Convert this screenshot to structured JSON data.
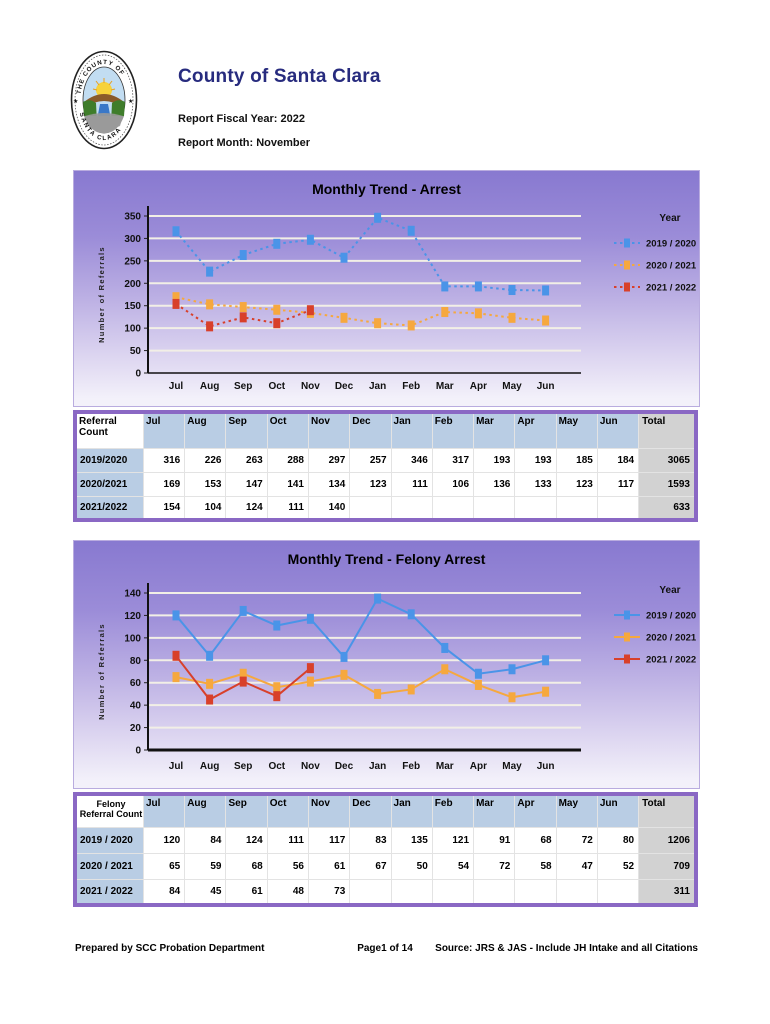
{
  "header": {
    "title": "County of Santa Clara",
    "fiscal_year": "Report Fiscal Year: 2022",
    "report_month": "Report Month: November",
    "seal_top_text": "THE COUNTY OF",
    "seal_bottom_text": "SANTA CLARA"
  },
  "chart_data": [
    {
      "type": "line",
      "title": "Monthly Trend - Arrest",
      "ylabel": "Number of Referrals",
      "legend_title": "Year",
      "categories": [
        "Jul",
        "Aug",
        "Sep",
        "Oct",
        "Nov",
        "Dec",
        "Jan",
        "Feb",
        "Mar",
        "Apr",
        "May",
        "Jun"
      ],
      "ylim": [
        0,
        350
      ],
      "ytick_step": 50,
      "grid": true,
      "legend_position": "right",
      "line_style": "dashed",
      "series": [
        {
          "name": "2019 / 2020",
          "color": "#4a94e8",
          "values": [
            316,
            226,
            263,
            288,
            297,
            257,
            346,
            317,
            193,
            193,
            185,
            184
          ]
        },
        {
          "name": "2020 / 2021",
          "color": "#f6a83e",
          "values": [
            169,
            153,
            147,
            141,
            134,
            123,
            111,
            106,
            136,
            133,
            123,
            117
          ]
        },
        {
          "name": "2021 / 2022",
          "color": "#d8402a",
          "values": [
            154,
            104,
            124,
            111,
            140
          ]
        }
      ]
    },
    {
      "type": "line",
      "title": "Monthly Trend - Felony Arrest",
      "ylabel": "Number of Referrals",
      "legend_title": "Year",
      "categories": [
        "Jul",
        "Aug",
        "Sep",
        "Oct",
        "Nov",
        "Dec",
        "Jan",
        "Feb",
        "Mar",
        "Apr",
        "May",
        "Jun"
      ],
      "ylim": [
        0,
        140
      ],
      "ytick_step": 20,
      "grid": true,
      "legend_position": "right",
      "line_style": "solid",
      "series": [
        {
          "name": "2019 / 2020",
          "color": "#4a94e8",
          "values": [
            120,
            84,
            124,
            111,
            117,
            83,
            135,
            121,
            91,
            68,
            72,
            80
          ]
        },
        {
          "name": "2020 / 2021",
          "color": "#f6a83e",
          "values": [
            65,
            59,
            68,
            56,
            61,
            67,
            50,
            54,
            72,
            58,
            47,
            52
          ]
        },
        {
          "name": "2021 / 2022",
          "color": "#d8402a",
          "values": [
            84,
            45,
            61,
            48,
            73
          ]
        }
      ]
    }
  ],
  "tables": [
    {
      "corner_label": "Referral Count",
      "columns": [
        "Jul",
        "Aug",
        "Sep",
        "Oct",
        "Nov",
        "Dec",
        "Jan",
        "Feb",
        "Mar",
        "Apr",
        "May",
        "Jun",
        "Total"
      ],
      "rows": [
        {
          "label": "2019/2020",
          "values": [
            316,
            226,
            263,
            288,
            297,
            257,
            346,
            317,
            193,
            193,
            185,
            184
          ],
          "total": 3065
        },
        {
          "label": "2020/2021",
          "values": [
            169,
            153,
            147,
            141,
            134,
            123,
            111,
            106,
            136,
            133,
            123,
            117
          ],
          "total": 1593
        },
        {
          "label": "2021/2022",
          "values": [
            154,
            104,
            124,
            111,
            140
          ],
          "total": 633
        }
      ]
    },
    {
      "corner_label": "Felony Referral Count",
      "columns": [
        "Jul",
        "Aug",
        "Sep",
        "Oct",
        "Nov",
        "Dec",
        "Jan",
        "Feb",
        "Mar",
        "Apr",
        "May",
        "Jun",
        "Total"
      ],
      "rows": [
        {
          "label": "2019 / 2020",
          "values": [
            120,
            84,
            124,
            111,
            117,
            83,
            135,
            121,
            91,
            68,
            72,
            80
          ],
          "total": 1206
        },
        {
          "label": "2020 / 2021",
          "values": [
            65,
            59,
            68,
            56,
            61,
            67,
            50,
            54,
            72,
            58,
            47,
            52
          ],
          "total": 709
        },
        {
          "label": "2021 / 2022",
          "values": [
            84,
            45,
            61,
            48,
            73
          ],
          "total": 311
        }
      ]
    }
  ],
  "footer": {
    "left": "Prepared by SCC Probation Department",
    "center": "Page1 of 14",
    "right": "Source: JRS & JAS - Include JH Intake and all Citations"
  },
  "colors": {
    "title_navy": "#272b7e",
    "table_border_purple": "#8a68c4",
    "table_header_blue": "#b9cde4",
    "table_total_grey": "#d2d2d2",
    "panel_gradient_top": "#8879d0",
    "panel_gradient_bottom": "#f3f1fa",
    "gridline": "#f2efe6"
  }
}
